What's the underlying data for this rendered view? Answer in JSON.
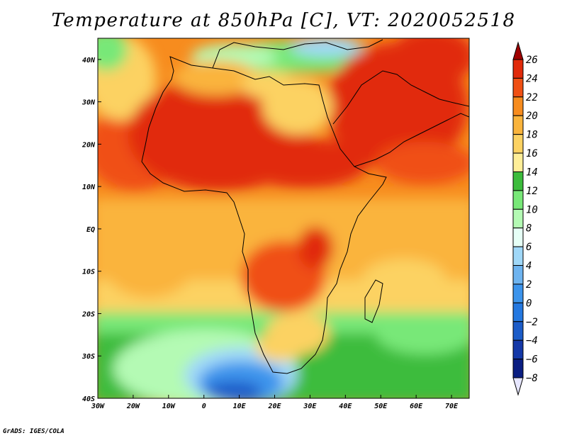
{
  "title": "Temperature at 850hPa [C], VT: 2020052518",
  "credit": "GrADS: IGES/COLA",
  "map": {
    "lon_range": [
      -30,
      75
    ],
    "lat_range": [
      -40,
      45
    ],
    "lon_ticks": [
      {
        "value": -30,
        "label": "30W"
      },
      {
        "value": -20,
        "label": "20W"
      },
      {
        "value": -10,
        "label": "10W"
      },
      {
        "value": 0,
        "label": "0"
      },
      {
        "value": 10,
        "label": "10E"
      },
      {
        "value": 20,
        "label": "20E"
      },
      {
        "value": 30,
        "label": "30E"
      },
      {
        "value": 40,
        "label": "40E"
      },
      {
        "value": 50,
        "label": "50E"
      },
      {
        "value": 60,
        "label": "60E"
      },
      {
        "value": 70,
        "label": "70E"
      }
    ],
    "lat_ticks": [
      {
        "value": 40,
        "label": "40N"
      },
      {
        "value": 30,
        "label": "30N"
      },
      {
        "value": 20,
        "label": "20N"
      },
      {
        "value": 10,
        "label": "10N"
      },
      {
        "value": 0,
        "label": "EQ"
      },
      {
        "value": -10,
        "label": "10S"
      },
      {
        "value": -20,
        "label": "20S"
      },
      {
        "value": -30,
        "label": "30S"
      },
      {
        "value": -40,
        "label": "40S"
      }
    ]
  },
  "colorbar": {
    "levels": [
      26,
      24,
      22,
      20,
      18,
      16,
      14,
      12,
      10,
      8,
      6,
      4,
      2,
      0,
      -2,
      -4,
      -6,
      -8
    ],
    "colors": [
      "#a00000",
      "#e12a0a",
      "#f05014",
      "#f78c1e",
      "#fab43c",
      "#fcd262",
      "#feee98",
      "#3cbc3c",
      "#78e878",
      "#b4fab4",
      "#e6fff6",
      "#a0d8f8",
      "#6eb4f0",
      "#3c94ec",
      "#2478e0",
      "#1c5cc8",
      "#1438a8",
      "#0a1e82",
      "#e6e6ff"
    ]
  }
}
